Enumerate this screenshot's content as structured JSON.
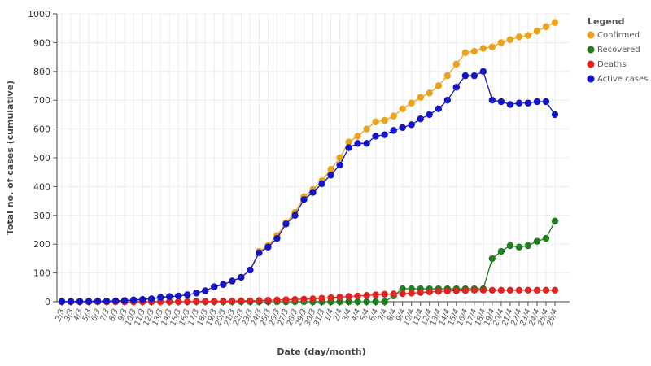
{
  "chart_data": {
    "type": "line",
    "x_label": "Date (day/month)",
    "y_label": "Total no. of cases (cumulative)",
    "legend_title": "Legend",
    "legend_position": "top-right",
    "grid": true,
    "ylim": [
      0,
      1000
    ],
    "yticks": [
      0,
      100,
      200,
      300,
      400,
      500,
      600,
      700,
      800,
      900,
      1000
    ],
    "categories": [
      "2/3",
      "3/3",
      "4/3",
      "5/3",
      "6/3",
      "7/3",
      "8/3",
      "9/3",
      "10/3",
      "11/3",
      "12/3",
      "13/3",
      "14/3",
      "15/3",
      "16/3",
      "17/3",
      "18/3",
      "19/3",
      "20/3",
      "21/3",
      "22/3",
      "23/3",
      "24/3",
      "25/3",
      "26/3",
      "27/3",
      "28/3",
      "29/3",
      "30/3",
      "31/3",
      "1/4",
      "2/4",
      "3/4",
      "4/4",
      "5/4",
      "6/4",
      "7/4",
      "8/4",
      "9/4",
      "10/4",
      "11/4",
      "12/4",
      "13/4",
      "14/4",
      "15/4",
      "16/4",
      "17/4",
      "18/4",
      "19/4",
      "20/4",
      "21/4",
      "22/4",
      "23/4",
      "24/4",
      "25/4",
      "26/4"
    ],
    "series": [
      {
        "name": "Confirmed",
        "color": "#eaa21b",
        "values": [
          1,
          1,
          1,
          1,
          2,
          2,
          3,
          4,
          6,
          8,
          10,
          15,
          18,
          20,
          24,
          30,
          38,
          52,
          60,
          72,
          85,
          110,
          175,
          195,
          230,
          275,
          310,
          365,
          390,
          420,
          460,
          500,
          555,
          575,
          600,
          625,
          630,
          645,
          670,
          690,
          710,
          725,
          750,
          785,
          825,
          865,
          870,
          880,
          885,
          900,
          910,
          920,
          925,
          940,
          955,
          970
        ]
      },
      {
        "name": "Recovered",
        "color": "#1e7d1e",
        "values": [
          0,
          0,
          0,
          0,
          0,
          0,
          0,
          0,
          0,
          0,
          0,
          0,
          0,
          0,
          0,
          0,
          0,
          0,
          0,
          0,
          0,
          0,
          0,
          0,
          0,
          0,
          0,
          0,
          0,
          0,
          0,
          0,
          0,
          0,
          0,
          0,
          0,
          20,
          45,
          45,
          45,
          45,
          45,
          45,
          45,
          45,
          45,
          45,
          150,
          175,
          195,
          190,
          195,
          210,
          220,
          280
        ]
      },
      {
        "name": "Deaths",
        "color": "#e02424",
        "values": [
          0,
          0,
          0,
          0,
          0,
          0,
          0,
          0,
          0,
          0,
          0,
          0,
          0,
          0,
          0,
          1,
          1,
          1,
          2,
          2,
          3,
          3,
          4,
          5,
          6,
          7,
          8,
          9,
          10,
          12,
          14,
          16,
          18,
          20,
          22,
          24,
          26,
          27,
          28,
          30,
          32,
          34,
          36,
          37,
          38,
          39,
          40,
          40,
          40,
          40,
          40,
          40,
          40,
          40,
          40,
          40
        ]
      },
      {
        "name": "Active cases",
        "color": "#1414c8",
        "values": [
          1,
          1,
          1,
          1,
          2,
          2,
          3,
          4,
          6,
          8,
          10,
          15,
          18,
          20,
          24,
          30,
          38,
          52,
          60,
          72,
          85,
          110,
          170,
          190,
          220,
          270,
          300,
          355,
          380,
          410,
          440,
          475,
          535,
          550,
          550,
          575,
          580,
          595,
          605,
          615,
          635,
          650,
          670,
          700,
          745,
          785,
          785,
          800,
          700,
          695,
          685,
          690,
          690,
          695,
          695,
          650
        ]
      }
    ]
  }
}
